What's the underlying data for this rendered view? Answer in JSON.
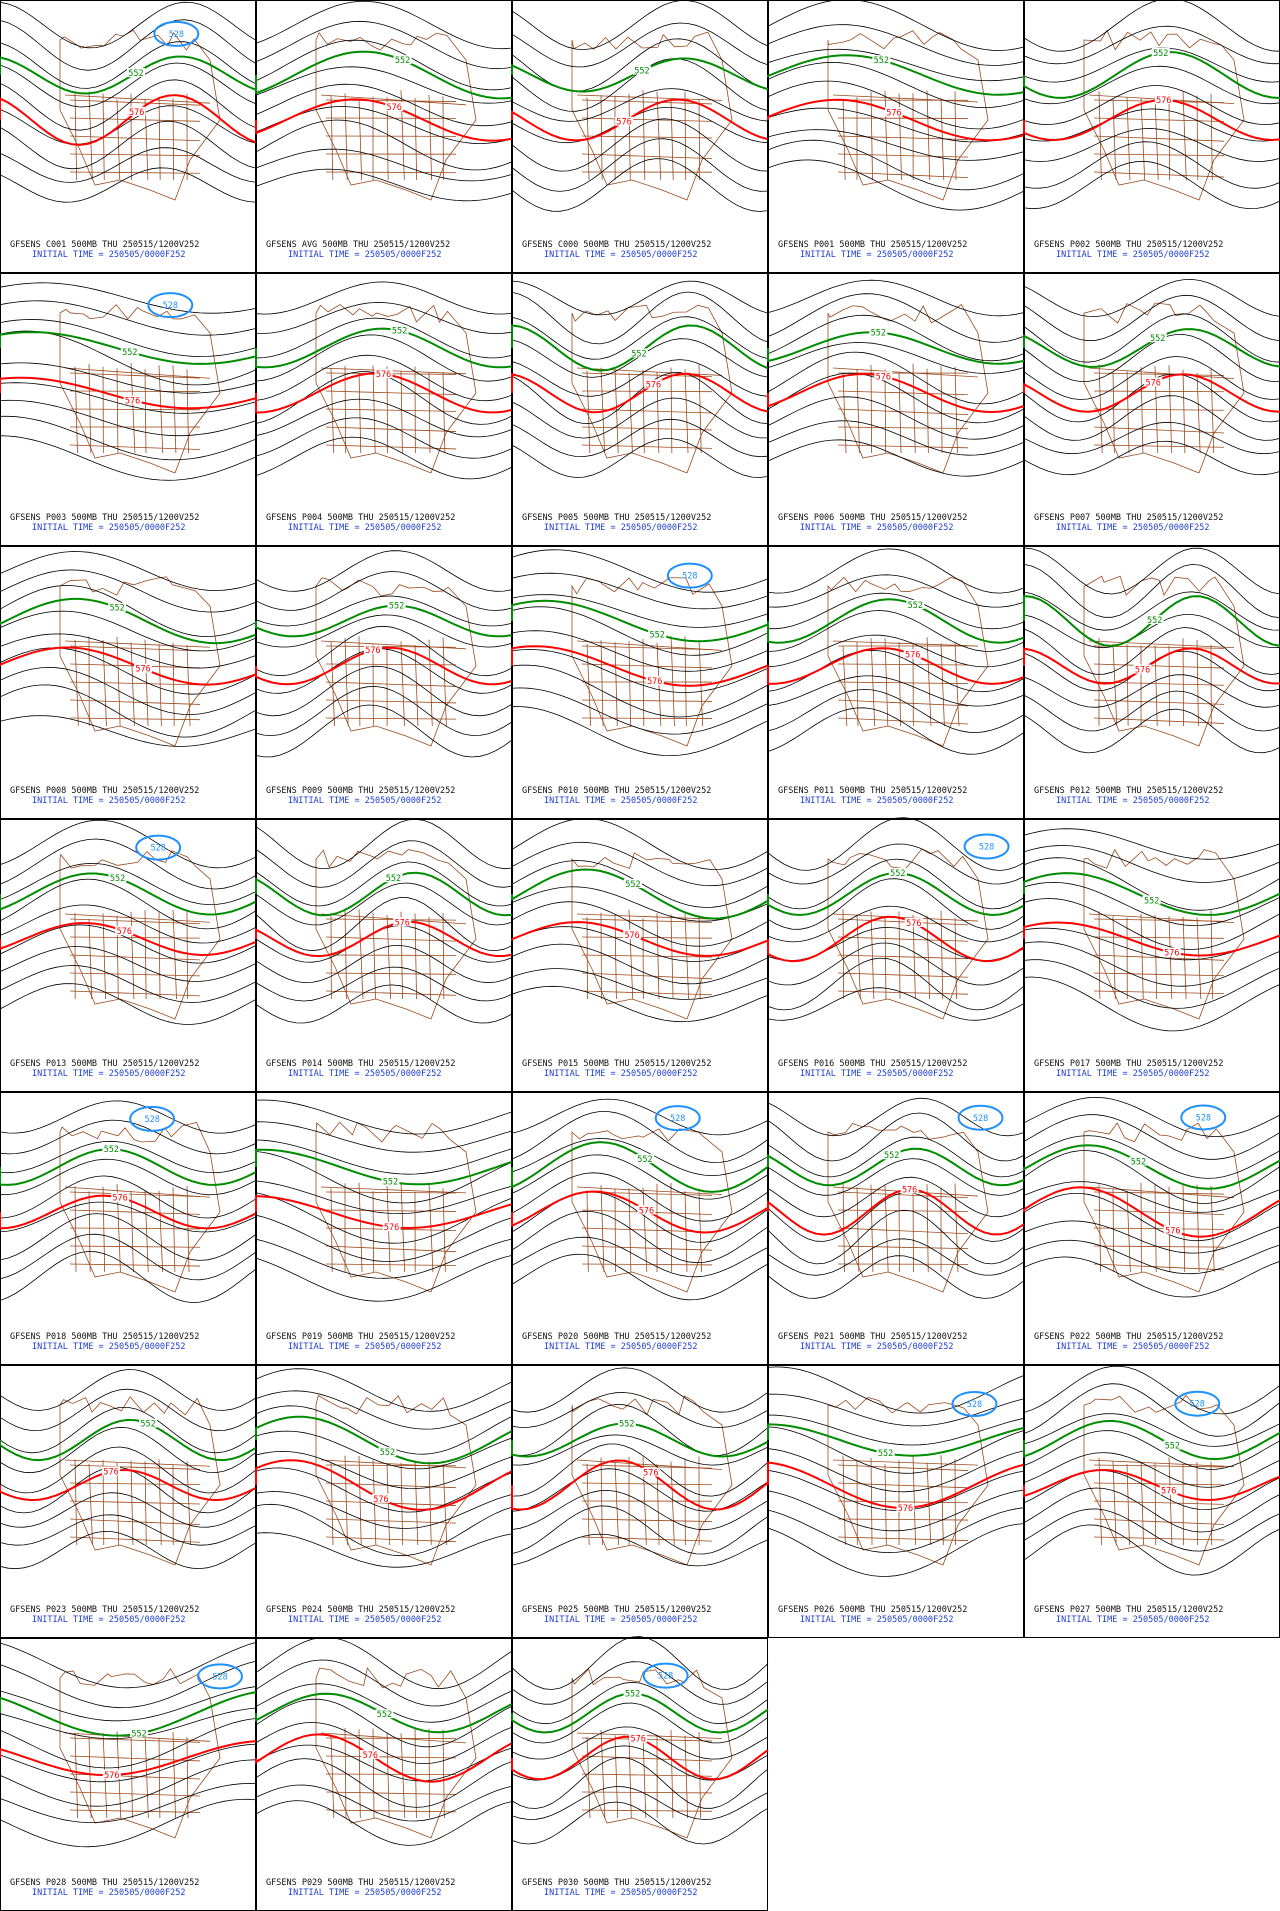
{
  "contour_colors": {
    "528": "#1e90ff",
    "552": "#008c00",
    "576": "#ff0000"
  },
  "panels": [
    {
      "title": "GFSENS C001 500MB THU 250515/1200V252",
      "init": "INITIAL TIME = 250505/0000F252",
      "labels": [
        "528",
        "552",
        "576"
      ]
    },
    {
      "title": "GFSENS AVG 500MB THU 250515/1200V252",
      "init": "INITIAL TIME = 250505/0000F252",
      "labels": [
        "552",
        "576"
      ]
    },
    {
      "title": "GFSENS C000 500MB THU 250515/1200V252",
      "init": "INITIAL TIME = 250505/0000F252",
      "labels": [
        "552",
        "576"
      ]
    },
    {
      "title": "GFSENS P001 500MB THU 250515/1200V252",
      "init": "INITIAL TIME = 250505/0000F252",
      "labels": [
        "552",
        "576"
      ]
    },
    {
      "title": "GFSENS P002 500MB THU 250515/1200V252",
      "init": "INITIAL TIME = 250505/0000F252",
      "labels": [
        "552",
        "576"
      ]
    },
    {
      "title": "GFSENS P003 500MB THU 250515/1200V252",
      "init": "INITIAL TIME = 250505/0000F252",
      "labels": [
        "528",
        "552",
        "576"
      ]
    },
    {
      "title": "GFSENS P004 500MB THU 250515/1200V252",
      "init": "INITIAL TIME = 250505/0000F252",
      "labels": [
        "552",
        "576"
      ]
    },
    {
      "title": "GFSENS P005 500MB THU 250515/1200V252",
      "init": "INITIAL TIME = 250505/0000F252",
      "labels": [
        "552",
        "576"
      ]
    },
    {
      "title": "GFSENS P006 500MB THU 250515/1200V252",
      "init": "INITIAL TIME = 250505/0000F252",
      "labels": [
        "552",
        "576"
      ]
    },
    {
      "title": "GFSENS P007 500MB THU 250515/1200V252",
      "init": "INITIAL TIME = 250505/0000F252",
      "labels": [
        "552",
        "576"
      ]
    },
    {
      "title": "GFSENS P008 500MB THU 250515/1200V252",
      "init": "INITIAL TIME = 250505/0000F252",
      "labels": [
        "552",
        "576"
      ]
    },
    {
      "title": "GFSENS P009 500MB THU 250515/1200V252",
      "init": "INITIAL TIME = 250505/0000F252",
      "labels": [
        "552",
        "576"
      ]
    },
    {
      "title": "GFSENS P010 500MB THU 250515/1200V252",
      "init": "INITIAL TIME = 250505/0000F252",
      "labels": [
        "528",
        "552",
        "576"
      ]
    },
    {
      "title": "GFSENS P011 500MB THU 250515/1200V252",
      "init": "INITIAL TIME = 250505/0000F252",
      "labels": [
        "552",
        "576"
      ]
    },
    {
      "title": "GFSENS P012 500MB THU 250515/1200V252",
      "init": "INITIAL TIME = 250505/0000F252",
      "labels": [
        "552",
        "576"
      ]
    },
    {
      "title": "GFSENS P013 500MB THU 250515/1200V252",
      "init": "INITIAL TIME = 250505/0000F252",
      "labels": [
        "528",
        "552",
        "576"
      ]
    },
    {
      "title": "GFSENS P014 500MB THU 250515/1200V252",
      "init": "INITIAL TIME = 250505/0000F252",
      "labels": [
        "552",
        "576"
      ]
    },
    {
      "title": "GFSENS P015 500MB THU 250515/1200V252",
      "init": "INITIAL TIME = 250505/0000F252",
      "labels": [
        "552",
        "576"
      ]
    },
    {
      "title": "GFSENS P016 500MB THU 250515/1200V252",
      "init": "INITIAL TIME = 250505/0000F252",
      "labels": [
        "528",
        "552",
        "576"
      ]
    },
    {
      "title": "GFSENS P017 500MB THU 250515/1200V252",
      "init": "INITIAL TIME = 250505/0000F252",
      "labels": [
        "552",
        "576"
      ]
    },
    {
      "title": "GFSENS P018 500MB THU 250515/1200V252",
      "init": "INITIAL TIME = 250505/0000F252",
      "labels": [
        "528",
        "552",
        "576"
      ]
    },
    {
      "title": "GFSENS P019 500MB THU 250515/1200V252",
      "init": "INITIAL TIME = 250505/0000F252",
      "labels": [
        "552",
        "576"
      ]
    },
    {
      "title": "GFSENS P020 500MB THU 250515/1200V252",
      "init": "INITIAL TIME = 250505/0000F252",
      "labels": [
        "528",
        "552",
        "576"
      ]
    },
    {
      "title": "GFSENS P021 500MB THU 250515/1200V252",
      "init": "INITIAL TIME = 250505/0000F252",
      "labels": [
        "528",
        "552",
        "576"
      ]
    },
    {
      "title": "GFSENS P022 500MB THU 250515/1200V252",
      "init": "INITIAL TIME = 250505/0000F252",
      "labels": [
        "528",
        "552",
        "576"
      ]
    },
    {
      "title": "GFSENS P023 500MB THU 250515/1200V252",
      "init": "INITIAL TIME = 250505/0000F252",
      "labels": [
        "552",
        "576"
      ]
    },
    {
      "title": "GFSENS P024 500MB THU 250515/1200V252",
      "init": "INITIAL TIME = 250505/0000F252",
      "labels": [
        "552",
        "576"
      ]
    },
    {
      "title": "GFSENS P025 500MB THU 250515/1200V252",
      "init": "INITIAL TIME = 250505/0000F252",
      "labels": [
        "552",
        "576"
      ]
    },
    {
      "title": "GFSENS P026 500MB THU 250515/1200V252",
      "init": "INITIAL TIME = 250505/0000F252",
      "labels": [
        "528",
        "552",
        "576"
      ]
    },
    {
      "title": "GFSENS P027 500MB THU 250515/1200V252",
      "init": "INITIAL TIME = 250505/0000F252",
      "labels": [
        "528",
        "552",
        "576"
      ]
    },
    {
      "title": "GFSENS P028 500MB THU 250515/1200V252",
      "init": "INITIAL TIME = 250505/0000F252",
      "labels": [
        "528",
        "552",
        "576"
      ]
    },
    {
      "title": "GFSENS P029 500MB THU 250515/1200V252",
      "init": "INITIAL TIME = 250505/0000F252",
      "labels": [
        "552",
        "576"
      ]
    },
    {
      "title": "GFSENS P030 500MB THU 250515/1200V252",
      "init": "INITIAL TIME = 250505/0000F252",
      "labels": [
        "528",
        "552",
        "576"
      ]
    }
  ]
}
